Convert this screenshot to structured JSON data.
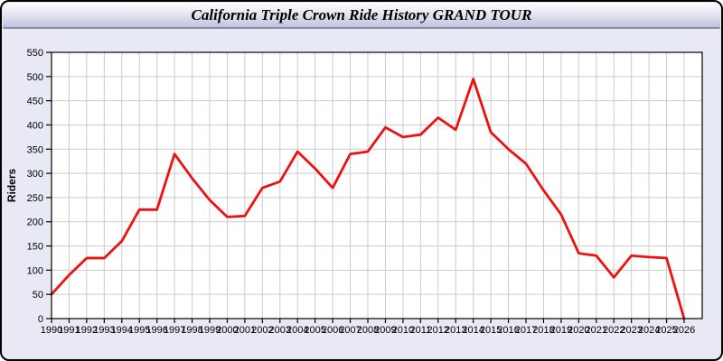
{
  "header": {
    "title": "California Triple Crown Ride History GRAND TOUR"
  },
  "colors": {
    "page_bg": "#E9E9F5",
    "plot_bg": "#FFFFFF",
    "grid": "#CCCCCC",
    "axis": "#000000",
    "line": "#EE1111",
    "tick_text": "#000000"
  },
  "chart_data": {
    "type": "line",
    "title": "California Triple Crown Ride History GRAND TOUR",
    "xlabel": "",
    "ylabel": "Riders",
    "ylim": [
      0,
      550
    ],
    "ytick_interval": 50,
    "grid": true,
    "legend_position": "none",
    "x": [
      1990,
      1991,
      1992,
      1993,
      1994,
      1995,
      1996,
      1997,
      1998,
      1999,
      2000,
      2001,
      2002,
      2003,
      2004,
      2005,
      2006,
      2007,
      2008,
      2009,
      2010,
      2011,
      2012,
      2013,
      2014,
      2015,
      2016,
      2017,
      2018,
      2019,
      2020,
      2021,
      2022,
      2023,
      2024,
      2025,
      2026
    ],
    "series": [
      {
        "name": "Riders",
        "values": [
          50,
          90,
          125,
          125,
          160,
          225,
          225,
          340,
          290,
          245,
          210,
          212,
          270,
          283,
          345,
          310,
          270,
          340,
          345,
          395,
          375,
          380,
          415,
          390,
          495,
          385,
          350,
          320,
          265,
          215,
          135,
          130,
          85,
          130,
          127,
          125,
          0
        ]
      }
    ]
  }
}
